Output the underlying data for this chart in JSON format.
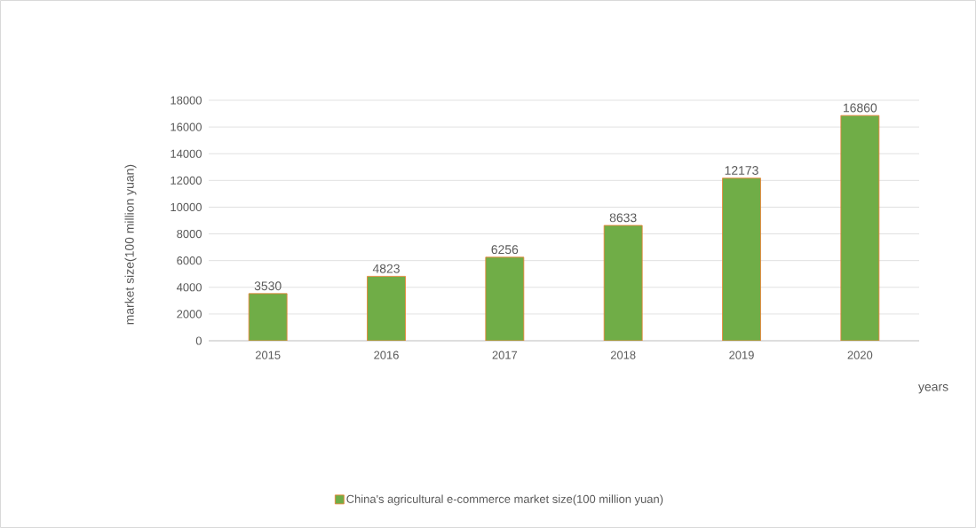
{
  "chart_data": {
    "type": "bar",
    "xlabel": "years",
    "ylabel": "market size(100 million yuan)",
    "categories": [
      "2015",
      "2016",
      "2017",
      "2018",
      "2019",
      "2020"
    ],
    "series": [
      {
        "name": "China's agricultural e-commerce market size(100 million yuan)",
        "color": "#70ad47",
        "values": [
          3530,
          4823,
          6256,
          8633,
          12173,
          16860
        ]
      }
    ],
    "ylim": [
      0,
      18000
    ],
    "yticks": [
      0,
      2000,
      4000,
      6000,
      8000,
      10000,
      12000,
      14000,
      16000,
      18000
    ],
    "grid": "y",
    "legend": "bottom",
    "data_labels": true
  }
}
